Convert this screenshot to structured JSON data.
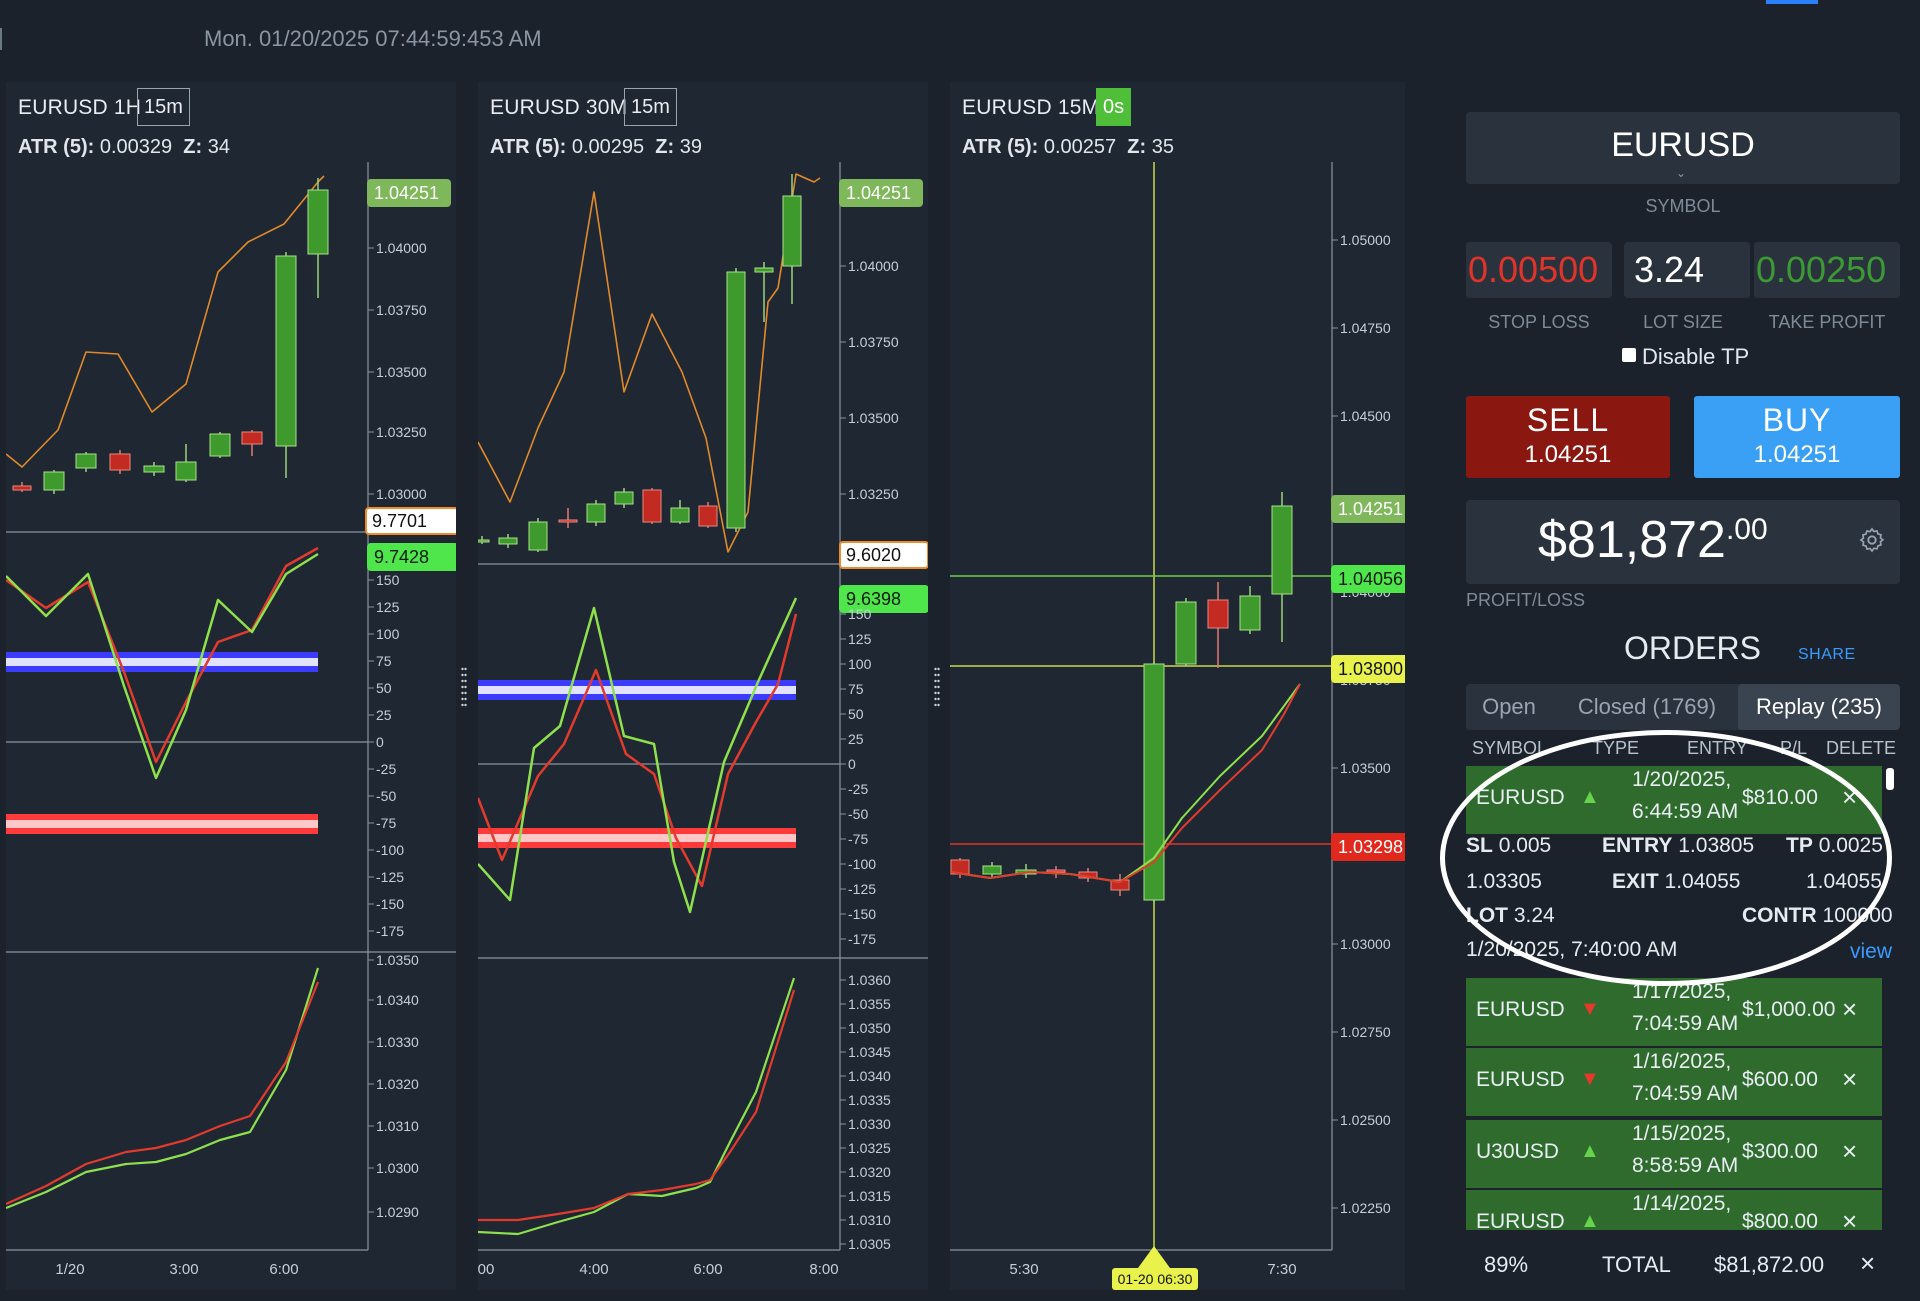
{
  "header": {
    "datetime": "Mon. 01/20/2025 07:44:59:453 AM"
  },
  "colors": {
    "up": "#3f9a2d",
    "down": "#c32a22",
    "buy": "#3aa0f5",
    "sell": "#8a1710",
    "accent": "#2a80ff",
    "line_orange": "#e08a2a",
    "line_green": "#8ee04d",
    "line_red": "#e23b2d"
  },
  "charts": [
    {
      "title": "EURUSD 1H",
      "timeframe": "15m",
      "timeframe_active": false,
      "atr_label": "ATR (5):",
      "atr_value": "0.00329",
      "z_label": "Z:",
      "z_value": "34",
      "price_ticks": [
        "1.04000",
        "1.03750",
        "1.03500",
        "1.03250",
        "1.03000"
      ],
      "price_tags": [
        {
          "text": "1.04251",
          "style": "green"
        }
      ],
      "osc_tags": [
        {
          "text": "9.7701",
          "style": "white-orange"
        },
        {
          "text": "9.7428",
          "style": "lime"
        }
      ],
      "osc_ticks": [
        "150",
        "125",
        "100",
        "75",
        "50",
        "25",
        "0",
        "-25",
        "-50",
        "-75",
        "-100",
        "-125",
        "-150",
        "-175"
      ],
      "bottom_ticks": [
        "1.0350",
        "1.0340",
        "1.0330",
        "1.0320",
        "1.0310",
        "1.0300",
        "1.0290"
      ],
      "x_ticks": [
        "1/20",
        "3:00",
        "6:00"
      ]
    },
    {
      "title": "EURUSD 30M",
      "timeframe": "15m",
      "timeframe_active": false,
      "atr_label": "ATR (5):",
      "atr_value": "0.00295",
      "z_label": "Z:",
      "z_value": "39",
      "price_ticks": [
        "1.04000",
        "1.03750",
        "1.03500",
        "1.03250"
      ],
      "price_tags": [
        {
          "text": "1.04251",
          "style": "green"
        }
      ],
      "osc_tags": [
        {
          "text": "9.6020",
          "style": "white-orange"
        },
        {
          "text": "9.6398",
          "style": "lime"
        }
      ],
      "osc_ticks": [
        "150",
        "125",
        "100",
        "75",
        "50",
        "25",
        "0",
        "-25",
        "-50",
        "-75",
        "-100",
        "-125",
        "-150",
        "-175"
      ],
      "bottom_ticks": [
        "1.0360",
        "1.0355",
        "1.0350",
        "1.0345",
        "1.0340",
        "1.0335",
        "1.0330",
        "1.0325",
        "1.0320",
        "1.0315",
        "1.0310",
        "1.0305"
      ],
      "x_ticks": [
        "00",
        "4:00",
        "6:00",
        "8:00"
      ]
    },
    {
      "title": "EURUSD 15M",
      "timeframe": "0s",
      "timeframe_active": true,
      "atr_label": "ATR (5):",
      "atr_value": "0.00257",
      "z_label": "Z:",
      "z_value": "35",
      "price_ticks": [
        "1.05000",
        "1.04750",
        "1.04500",
        "1.04250",
        "1.04000",
        "1.03750",
        "1.03500",
        "1.03250",
        "1.03000",
        "1.02750",
        "1.02500",
        "1.02250"
      ],
      "price_tags": [
        {
          "text": "1.04251",
          "style": "green"
        },
        {
          "text": "1.04056",
          "style": "lime"
        },
        {
          "text": "1.03800",
          "style": "yellow"
        },
        {
          "text": "1.03298",
          "style": "red"
        }
      ],
      "x_ticks": [
        "5:30",
        "7:30"
      ],
      "cursor_label": "01-20 06:30"
    }
  ],
  "sidebar": {
    "symbol": "EURUSD",
    "symbol_label": "SYMBOL",
    "stop_loss": "0.00500",
    "stop_loss_label": "STOP LOSS",
    "lot_size": "3.24",
    "lot_size_label": "LOT SIZE",
    "take_profit": "0.00250",
    "take_profit_label": "TAKE PROFIT",
    "disable_tp_label": "Disable TP",
    "sell": {
      "label": "SELL",
      "price": "1.04251"
    },
    "buy": {
      "label": "BUY",
      "price": "1.04251"
    },
    "pl_amount": "$81,872",
    "pl_cents": ".00",
    "pl_label": "PROFIT/LOSS",
    "orders_title": "ORDERS",
    "share_label": "SHARE",
    "tabs": [
      {
        "label": "Open"
      },
      {
        "label": "Closed (1769)"
      },
      {
        "label": "Replay (235)"
      }
    ],
    "columns": [
      "SYMBOL",
      "TYPE",
      "ENTRY",
      "P/L",
      "DELETE"
    ],
    "orders": [
      {
        "symbol": "EURUSD",
        "dir": "up",
        "date": "1/20/2025,",
        "time": "6:44:59 AM",
        "pl": "$810.00"
      },
      {
        "symbol": "EURUSD",
        "dir": "down",
        "date": "1/17/2025,",
        "time": "7:04:59 AM",
        "pl": "$1,000.00"
      },
      {
        "symbol": "EURUSD",
        "dir": "down",
        "date": "1/16/2025,",
        "time": "7:04:59 AM",
        "pl": "$600.00"
      },
      {
        "symbol": "U30USD",
        "dir": "up",
        "date": "1/15/2025,",
        "time": "8:58:59 AM",
        "pl": "$300.00"
      },
      {
        "symbol": "EURUSD",
        "dir": "up",
        "date": "1/14/2025,",
        "time": "",
        "pl": "$800.00"
      }
    ],
    "detail": {
      "sl_label": "SL",
      "sl": "0.005",
      "sl_price": "1.03305",
      "entry_label": "ENTRY",
      "entry": "1.03805",
      "exit_label": "EXIT",
      "exit": "1.04055",
      "tp_label": "TP",
      "tp": "0.0025",
      "tp_price": "1.04055",
      "lot_label": "LOT",
      "lot": "3.24",
      "contr_label": "CONTR",
      "contr": "100000",
      "opened": "1/20/2025, 7:40:00 AM",
      "view": "view"
    },
    "footer": {
      "percent": "89%",
      "total_label": "TOTAL",
      "total": "$81,872.00",
      "close": "×"
    }
  }
}
